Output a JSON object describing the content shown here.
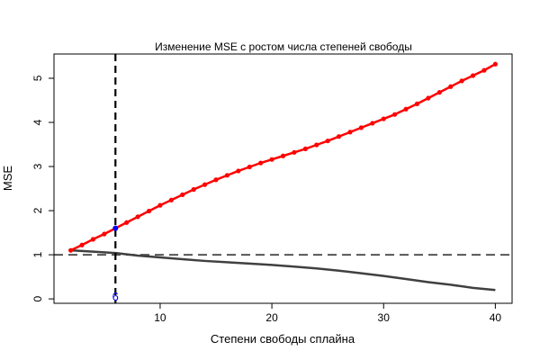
{
  "chart_data": {
    "type": "line",
    "title": "Изменение MSE с ростом числа степеней свободы",
    "xlabel": "Степени свободы сплайна",
    "ylabel": "MSE",
    "xlim": [
      0.5,
      41.5
    ],
    "ylim": [
      -0.1,
      5.55
    ],
    "xticks": [
      10,
      20,
      30,
      40
    ],
    "yticks": [
      0,
      1,
      2,
      3,
      4,
      5
    ],
    "grid": false,
    "colors": {
      "test": "#ff0000",
      "train": "#404040",
      "best": "#0000ff",
      "reference": "#555555",
      "vline": "#000000"
    },
    "series": [
      {
        "role": "test",
        "x": [
          2,
          3,
          4,
          5,
          6,
          7,
          8,
          9,
          10,
          11,
          12,
          13,
          14,
          15,
          16,
          17,
          18,
          19,
          20,
          21,
          22,
          23,
          24,
          25,
          26,
          27,
          28,
          29,
          30,
          31,
          32,
          33,
          34,
          35,
          36,
          37,
          38,
          39,
          40
        ],
        "values": [
          1.1,
          1.22,
          1.35,
          1.47,
          1.6,
          1.73,
          1.86,
          1.99,
          2.12,
          2.24,
          2.36,
          2.48,
          2.59,
          2.7,
          2.8,
          2.9,
          2.99,
          3.08,
          3.16,
          3.24,
          3.32,
          3.4,
          3.49,
          3.58,
          3.68,
          3.78,
          3.88,
          3.98,
          4.08,
          4.18,
          4.3,
          4.42,
          4.55,
          4.68,
          4.81,
          4.94,
          5.06,
          5.18,
          5.32
        ]
      },
      {
        "role": "train",
        "x": [
          2,
          4,
          6,
          8,
          10,
          12,
          14,
          16,
          18,
          20,
          22,
          24,
          26,
          28,
          30,
          32,
          34,
          36,
          38,
          40
        ],
        "values": [
          1.1,
          1.07,
          1.04,
          0.98,
          0.94,
          0.9,
          0.86,
          0.83,
          0.8,
          0.77,
          0.73,
          0.69,
          0.64,
          0.58,
          0.52,
          0.45,
          0.38,
          0.32,
          0.25,
          0.2
        ]
      }
    ],
    "hline": 1.0,
    "best": {
      "x": 6,
      "y": 1.6,
      "label": "6"
    }
  }
}
